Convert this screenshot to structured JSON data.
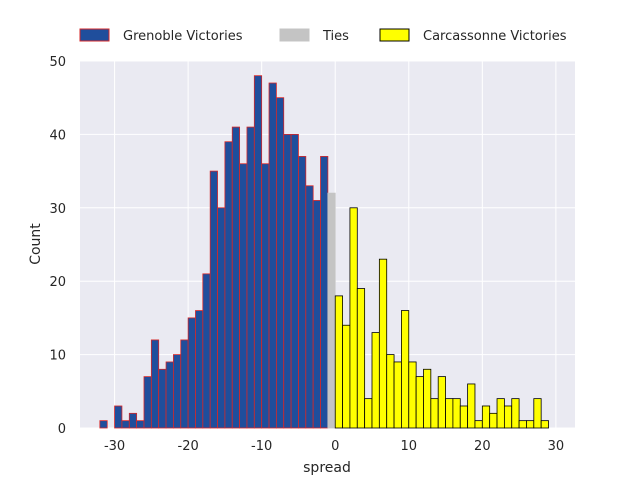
{
  "chart_data": {
    "type": "bar",
    "xlabel": "spread",
    "ylabel": "Count",
    "xlim": [
      -34.7,
      32.6
    ],
    "ylim": [
      0,
      50
    ],
    "grid": true,
    "legend_position": "top",
    "x_ticks": [
      -30,
      -20,
      -10,
      0,
      10,
      20,
      30
    ],
    "y_ticks": [
      0,
      10,
      20,
      30,
      40,
      50
    ],
    "bin_width": 1,
    "series": [
      {
        "name": "Grenoble Victories",
        "color": "#1f4e9c",
        "edge_color": "#d62728",
        "bins": [
          {
            "x": -31.5,
            "count": 1
          },
          {
            "x": -30.5,
            "count": 0
          },
          {
            "x": -29.5,
            "count": 3
          },
          {
            "x": -28.5,
            "count": 1
          },
          {
            "x": -27.5,
            "count": 2
          },
          {
            "x": -26.5,
            "count": 1
          },
          {
            "x": -25.5,
            "count": 7
          },
          {
            "x": -24.5,
            "count": 12
          },
          {
            "x": -23.5,
            "count": 8
          },
          {
            "x": -22.5,
            "count": 9
          },
          {
            "x": -21.5,
            "count": 10
          },
          {
            "x": -20.5,
            "count": 12
          },
          {
            "x": -19.5,
            "count": 15
          },
          {
            "x": -18.5,
            "count": 16
          },
          {
            "x": -17.5,
            "count": 21
          },
          {
            "x": -16.5,
            "count": 35
          },
          {
            "x": -15.5,
            "count": 30
          },
          {
            "x": -14.5,
            "count": 39
          },
          {
            "x": -13.5,
            "count": 41
          },
          {
            "x": -12.5,
            "count": 36
          },
          {
            "x": -11.5,
            "count": 41
          },
          {
            "x": -10.5,
            "count": 48
          },
          {
            "x": -9.5,
            "count": 36
          },
          {
            "x": -8.5,
            "count": 47
          },
          {
            "x": -7.5,
            "count": 45
          },
          {
            "x": -6.5,
            "count": 40
          },
          {
            "x": -5.5,
            "count": 40
          },
          {
            "x": -4.5,
            "count": 37
          },
          {
            "x": -3.5,
            "count": 33
          },
          {
            "x": -2.5,
            "count": 31
          },
          {
            "x": -1.5,
            "count": 37
          }
        ]
      },
      {
        "name": "Ties",
        "color": "#c4c4c4",
        "edge_color": "#c4c4c4",
        "bins": [
          {
            "x": -0.5,
            "count": 32
          }
        ]
      },
      {
        "name": "Carcassonne Victories",
        "color": "#ffff00",
        "edge_color": "#000000",
        "bins": [
          {
            "x": 0.5,
            "count": 18
          },
          {
            "x": 1.5,
            "count": 14
          },
          {
            "x": 2.5,
            "count": 30
          },
          {
            "x": 3.5,
            "count": 19
          },
          {
            "x": 4.5,
            "count": 4
          },
          {
            "x": 5.5,
            "count": 13
          },
          {
            "x": 6.5,
            "count": 23
          },
          {
            "x": 7.5,
            "count": 10
          },
          {
            "x": 8.5,
            "count": 9
          },
          {
            "x": 9.5,
            "count": 16
          },
          {
            "x": 10.5,
            "count": 9
          },
          {
            "x": 11.5,
            "count": 7
          },
          {
            "x": 12.5,
            "count": 8
          },
          {
            "x": 13.5,
            "count": 4
          },
          {
            "x": 14.5,
            "count": 7
          },
          {
            "x": 15.5,
            "count": 4
          },
          {
            "x": 16.5,
            "count": 4
          },
          {
            "x": 17.5,
            "count": 3
          },
          {
            "x": 18.5,
            "count": 6
          },
          {
            "x": 19.5,
            "count": 1
          },
          {
            "x": 20.5,
            "count": 3
          },
          {
            "x": 21.5,
            "count": 2
          },
          {
            "x": 22.5,
            "count": 4
          },
          {
            "x": 23.5,
            "count": 3
          },
          {
            "x": 24.5,
            "count": 4
          },
          {
            "x": 25.5,
            "count": 1
          },
          {
            "x": 26.5,
            "count": 1
          },
          {
            "x": 27.5,
            "count": 4
          },
          {
            "x": 28.5,
            "count": 1
          }
        ]
      }
    ]
  },
  "colors": {
    "plot_background": "#eaeaf2",
    "grid": "#ffffff",
    "text": "#262626"
  }
}
